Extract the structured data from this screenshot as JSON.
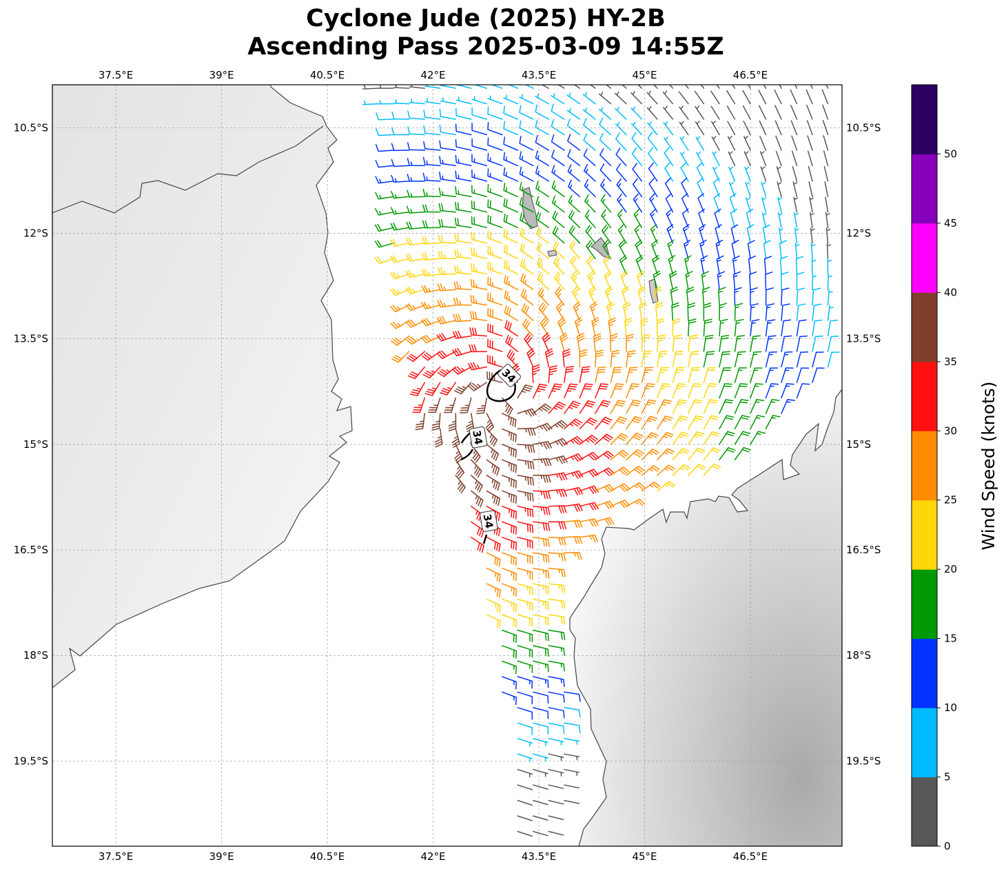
{
  "title": {
    "line1": "Cyclone Jude (2025) HY-2B",
    "line2": "Ascending Pass 2025-03-09 14:55Z"
  },
  "chart_data": {
    "type": "wind-barb-map",
    "title": "Cyclone Jude (2025) HY-2B Ascending Pass 2025-03-09 14:55Z",
    "extent": {
      "lon": [
        36.6,
        47.8
      ],
      "lat": [
        -20.71,
        -9.89
      ]
    },
    "lon_ticks": [
      {
        "value": 37.5,
        "label": "37.5°E"
      },
      {
        "value": 39,
        "label": "39°E"
      },
      {
        "value": 40.5,
        "label": "40.5°E"
      },
      {
        "value": 42,
        "label": "42°E"
      },
      {
        "value": 43.5,
        "label": "43.5°E"
      },
      {
        "value": 45,
        "label": "45°E"
      },
      {
        "value": 46.5,
        "label": "46.5°E"
      }
    ],
    "lat_ticks": [
      {
        "value": -10.5,
        "label": "10.5°S"
      },
      {
        "value": -12,
        "label": "12°S"
      },
      {
        "value": -13.5,
        "label": "13.5°S"
      },
      {
        "value": -15,
        "label": "15°S"
      },
      {
        "value": -16.5,
        "label": "16.5°S"
      },
      {
        "value": -18,
        "label": "18°S"
      },
      {
        "value": -19.5,
        "label": "19.5°S"
      }
    ],
    "grid": true,
    "colorbar": {
      "label": "Wind Speed (knots)",
      "range": [
        0,
        55
      ],
      "bins": [
        {
          "min": 0,
          "max": 5,
          "color": "#575757"
        },
        {
          "min": 5,
          "max": 10,
          "color": "#00bbff"
        },
        {
          "min": 10,
          "max": 15,
          "color": "#0033ff"
        },
        {
          "min": 15,
          "max": 20,
          "color": "#009900"
        },
        {
          "min": 20,
          "max": 25,
          "color": "#ffd60a"
        },
        {
          "min": 25,
          "max": 30,
          "color": "#ff8c00"
        },
        {
          "min": 30,
          "max": 35,
          "color": "#ff1010"
        },
        {
          "min": 35,
          "max": 40,
          "color": "#7f3f2a"
        },
        {
          "min": 40,
          "max": 45,
          "color": "#ff00ff"
        },
        {
          "min": 45,
          "max": 50,
          "color": "#8800bb"
        },
        {
          "min": 50,
          "max": 55,
          "color": "#2a0060"
        }
      ],
      "ticks": [
        0,
        5,
        10,
        15,
        20,
        25,
        30,
        35,
        40,
        45,
        50
      ]
    },
    "wind_field": {
      "rotation_center": {
        "lon": 43.0,
        "lat": -14.3
      },
      "max_wind_center": {
        "lon": 42.7,
        "lat": -15.0
      },
      "max_wind_kt": 37,
      "decay_kt_per_deg": 6.5,
      "inflow_deg": 20,
      "spacing_deg": 0.22,
      "swath_polygon": [
        [
          41.14,
          -9.89
        ],
        [
          41.28,
          -10.65
        ],
        [
          41.38,
          -11.63
        ],
        [
          41.38,
          -12.16
        ],
        [
          41.51,
          -12.8
        ],
        [
          41.62,
          -13.29
        ],
        [
          41.67,
          -13.78
        ],
        [
          41.77,
          -14.36
        ],
        [
          41.92,
          -14.76
        ],
        [
          42.26,
          -15.15
        ],
        [
          42.36,
          -15.73
        ],
        [
          42.5,
          -16.32
        ],
        [
          42.6,
          -16.81
        ],
        [
          42.75,
          -17.5
        ],
        [
          42.94,
          -18.47
        ],
        [
          43.14,
          -19.45
        ],
        [
          43.19,
          -20.04
        ],
        [
          43.19,
          -20.71
        ],
        [
          43.63,
          -20.71
        ],
        [
          43.77,
          -20.24
        ],
        [
          44.07,
          -19.75
        ],
        [
          44.02,
          -19.26
        ],
        [
          43.82,
          -18.28
        ],
        [
          43.72,
          -17.5
        ],
        [
          43.68,
          -17.2
        ],
        [
          43.82,
          -16.71
        ],
        [
          44.16,
          -16.32
        ],
        [
          44.65,
          -15.93
        ],
        [
          45.24,
          -15.69
        ],
        [
          45.73,
          -15.54
        ],
        [
          46.22,
          -15.34
        ],
        [
          46.51,
          -15.05
        ],
        [
          46.9,
          -14.66
        ],
        [
          47.39,
          -14.17
        ],
        [
          47.73,
          -13.78
        ],
        [
          47.8,
          -12.9
        ],
        [
          47.8,
          -9.89
        ]
      ]
    },
    "contour_labels": [
      {
        "text": "34",
        "lon": 43.08,
        "lat": -14.02,
        "angle": 45
      },
      {
        "text": "34",
        "lon": 42.64,
        "lat": -14.9,
        "angle": 80
      },
      {
        "text": "34",
        "lon": 42.79,
        "lat": -16.09,
        "angle": 80
      }
    ]
  }
}
